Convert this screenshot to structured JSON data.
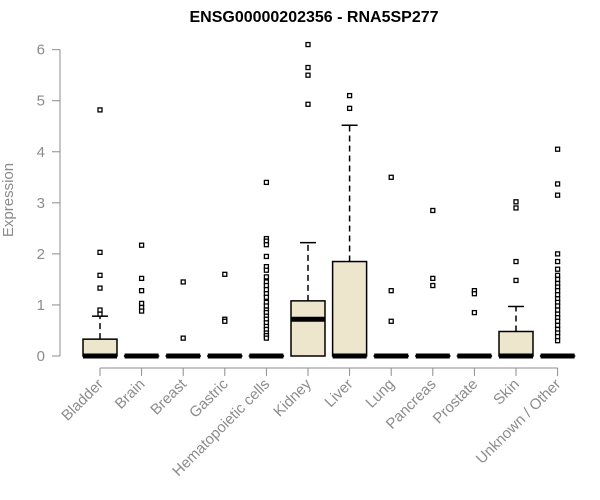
{
  "chart_data": {
    "type": "boxplot",
    "title": "ENSG00000202356 - RNA5SP277",
    "xlabel": "",
    "ylabel": "Expression",
    "ylim": [
      0,
      6.15
    ],
    "yticks": [
      0,
      1,
      2,
      3,
      4,
      5,
      6
    ],
    "box_color": "#ede5cc",
    "categories": [
      "Bladder",
      "Brain",
      "Breast",
      "Gastric",
      "Hematopoietic cells",
      "Kidney",
      "Liver",
      "Lung",
      "Pancreas",
      "Prostate",
      "Skin",
      "Unknown / Other"
    ],
    "boxes": [
      {
        "q1": 0,
        "median": 0,
        "q3": 0.33,
        "whisker_low": 0,
        "whisker_high": 0.78,
        "outliers": [
          4.82,
          2.03,
          1.58,
          1.33,
          0.9,
          0.82
        ]
      },
      {
        "q1": 0,
        "median": 0,
        "q3": 0,
        "whisker_low": 0,
        "whisker_high": 0,
        "outliers": [
          2.17,
          1.52,
          1.28,
          1.03,
          0.95,
          0.88
        ]
      },
      {
        "q1": 0,
        "median": 0,
        "q3": 0,
        "whisker_low": 0,
        "whisker_high": 0,
        "outliers": [
          1.45,
          0.35
        ]
      },
      {
        "q1": 0,
        "median": 0,
        "q3": 0,
        "whisker_low": 0,
        "whisker_high": 0,
        "outliers": [
          1.6,
          0.72,
          0.68
        ]
      },
      {
        "q1": 0,
        "median": 0,
        "q3": 0,
        "whisker_low": 0,
        "whisker_high": 0,
        "outliers": [
          3.4,
          2.3,
          2.25,
          2.18,
          1.95,
          1.75,
          1.68,
          1.55,
          1.45,
          1.38,
          1.3,
          1.22,
          1.15,
          1.05,
          0.98,
          0.9,
          0.85,
          0.78,
          0.72,
          0.65,
          0.58,
          0.52,
          0.45,
          0.4,
          0.35
        ]
      },
      {
        "q1": 0,
        "median": 0.72,
        "q3": 1.08,
        "whisker_low": 0,
        "whisker_high": 2.22,
        "outliers": [
          6.1,
          5.65,
          5.5,
          4.93
        ]
      },
      {
        "q1": 0,
        "median": 0,
        "q3": 1.85,
        "whisker_low": 0,
        "whisker_high": 4.52,
        "outliers": [
          5.1,
          4.85
        ]
      },
      {
        "q1": 0,
        "median": 0,
        "q3": 0,
        "whisker_low": 0,
        "whisker_high": 0,
        "outliers": [
          3.5,
          1.28,
          0.68
        ]
      },
      {
        "q1": 0,
        "median": 0,
        "q3": 0,
        "whisker_low": 0,
        "whisker_high": 0,
        "outliers": [
          2.85,
          1.52,
          1.38
        ]
      },
      {
        "q1": 0,
        "median": 0,
        "q3": 0,
        "whisker_low": 0,
        "whisker_high": 0,
        "outliers": [
          1.28,
          1.22,
          0.85
        ]
      },
      {
        "q1": 0,
        "median": 0,
        "q3": 0.48,
        "whisker_low": 0,
        "whisker_high": 0.97,
        "outliers": [
          3.02,
          2.9,
          1.85,
          1.48
        ]
      },
      {
        "q1": 0,
        "median": 0,
        "q3": 0,
        "whisker_low": 0,
        "whisker_high": 0,
        "outliers": [
          4.05,
          3.37,
          3.15,
          2.0,
          1.85,
          1.7,
          1.58,
          1.5,
          1.42,
          1.35,
          1.28,
          1.2,
          1.12,
          1.05,
          0.98,
          0.9,
          0.82,
          0.75,
          0.68,
          0.6,
          0.52,
          0.45,
          0.38,
          0.3
        ]
      }
    ]
  }
}
